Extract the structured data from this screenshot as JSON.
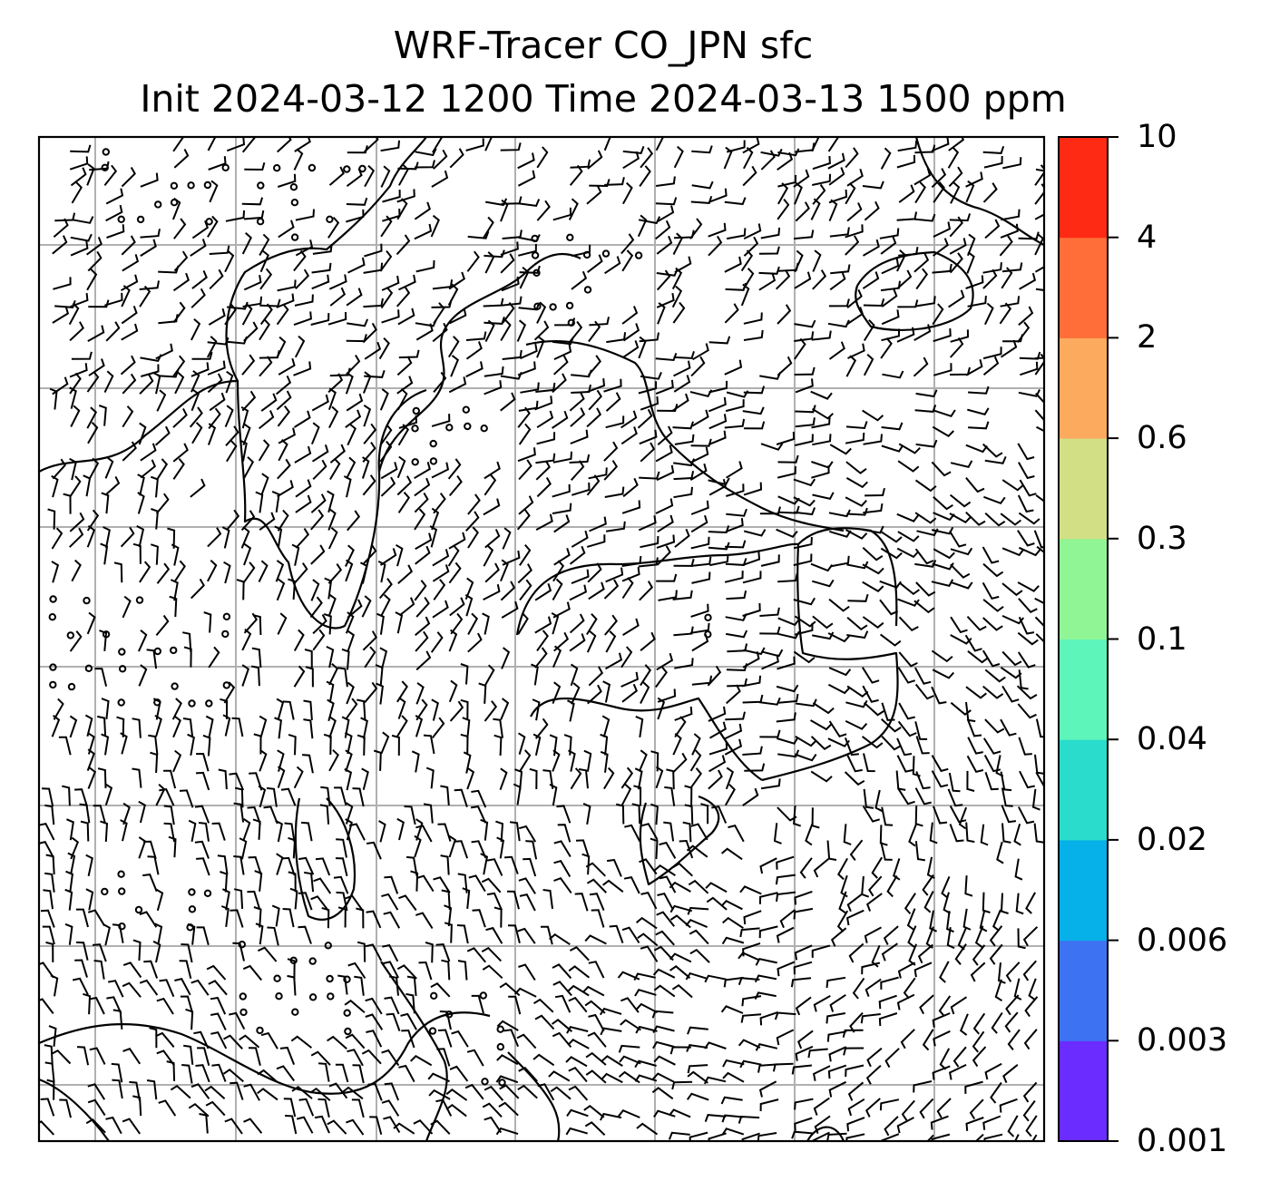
{
  "title": {
    "line1": "WRF-Tracer CO_JPN sfc",
    "line2": "Init 2024-03-12 1200 Time 2024-03-13 1500 ppm"
  },
  "colorbar": {
    "levels": [
      "0.001",
      "0.003",
      "0.006",
      "0.02",
      "0.04",
      "0.1",
      "0.3",
      "0.6",
      "2",
      "4",
      "10"
    ],
    "colors": [
      "#6a2cff",
      "#3d73f2",
      "#06b0e8",
      "#29dccb",
      "#5df5ba",
      "#90f595",
      "#d2df85",
      "#fbaa5e",
      "#ff6e38",
      "#ff2a14"
    ]
  },
  "map": {
    "gridlines": true,
    "gridline_color": "#b0b0b0",
    "barb_color": "#000000",
    "coastline_color": "#000000"
  }
}
